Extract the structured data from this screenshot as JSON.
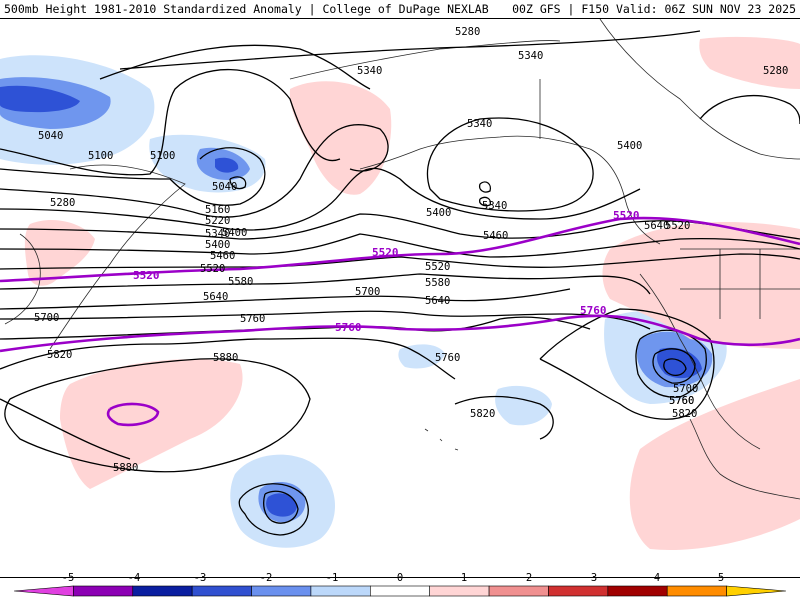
{
  "header": {
    "title": "500mb Height 1981-2010 Standardized Anomaly | College of DuPage NEXLAB",
    "run_info": "00Z GFS | F150 Valid: 06Z SUN NOV 23 2025"
  },
  "map": {
    "contour_labels": [
      "5280",
      "5340",
      "5340",
      "5280",
      "5040",
      "5100",
      "5100",
      "5040",
      "5160",
      "5220",
      "5340",
      "5400",
      "5460",
      "5520",
      "5580",
      "5640",
      "5700",
      "5760",
      "5820",
      "5880",
      "5880",
      "5280",
      "5340",
      "5400",
      "5460",
      "5520",
      "5580",
      "5640",
      "5700",
      "5760",
      "5820",
      "5400",
      "5520",
      "5640",
      "5760",
      "5700",
      "5760",
      "5820",
      "5340",
      "5400"
    ],
    "highlight_labels": [
      "5520",
      "5520",
      "5760",
      "5760",
      "5520"
    ]
  },
  "colorbar": {
    "ticks": [
      "-5",
      "-4",
      "-3",
      "-2",
      "-1",
      "0",
      "1",
      "2",
      "3",
      "4",
      "5"
    ],
    "colors": [
      "#e040e0",
      "#8c00b4",
      "#0a1ea0",
      "#3050d0",
      "#6a90ee",
      "#bcd8fa",
      "#ffffff",
      "#ffd5d5",
      "#f09090",
      "#d03030",
      "#a00000",
      "#ff8c00",
      "#ffd000"
    ]
  }
}
